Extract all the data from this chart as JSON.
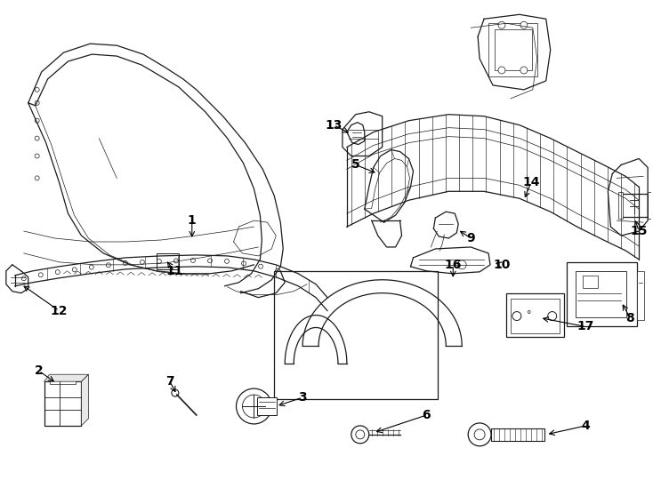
{
  "background_color": "#ffffff",
  "line_color": "#1a1a1a",
  "fig_width": 7.34,
  "fig_height": 5.4,
  "dpi": 100,
  "label_fontsize": 10,
  "label_fontweight": "bold"
}
